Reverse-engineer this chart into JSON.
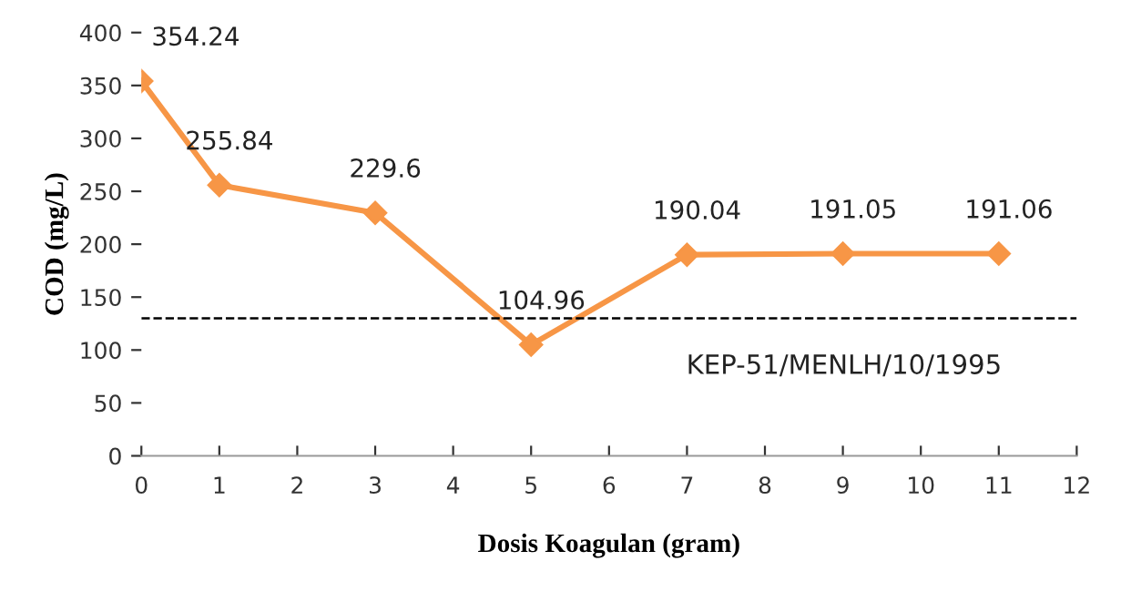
{
  "chart_data": {
    "type": "line",
    "xlabel": "Dosis Koagulan (gram)",
    "ylabel": "COD (mg/L)",
    "x": [
      0,
      1,
      3,
      5,
      7,
      9,
      11
    ],
    "series": [
      {
        "color": "#f79646",
        "values": [
          354.24,
          255.84,
          229.6,
          104.96,
          190.04,
          191.05,
          191.06
        ]
      }
    ],
    "data_labels": true,
    "marker": "diamond",
    "line_style": "solid",
    "xlim": [
      0,
      12
    ],
    "xticks": [
      0,
      1,
      2,
      3,
      4,
      5,
      6,
      7,
      8,
      9,
      10,
      11,
      12
    ],
    "ylim": [
      0,
      400
    ],
    "yticks": [
      0,
      50,
      100,
      150,
      200,
      250,
      300,
      350,
      400
    ],
    "ref_lines": [
      {
        "axis": "y",
        "value": 130,
        "label": "KEP-51/MENLH/10/1995",
        "color": "#000000",
        "line_style": "dashed"
      }
    ],
    "grid": false
  }
}
